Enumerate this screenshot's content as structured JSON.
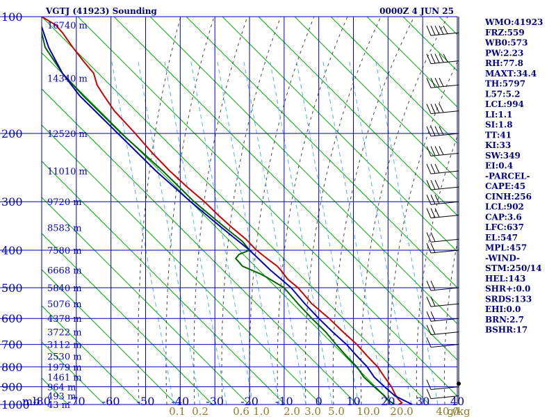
{
  "chart_data": {
    "type": "line",
    "title": "VGTJ (41923) Sounding",
    "time_label": "0000Z  4 JUN 25",
    "y_axis_unit": "mb",
    "y_scale": "log",
    "ylim": [
      1000,
      100
    ],
    "xlim": [
      -80,
      40
    ],
    "pressure_ticks": [
      100,
      200,
      300,
      400,
      500,
      600,
      700,
      800,
      900,
      1000
    ],
    "temperature_ticks": [
      "-80",
      "-70",
      "-60",
      "-50",
      "-40",
      "-30",
      "-20",
      "-10",
      "0",
      "10",
      "20",
      "30",
      "40"
    ],
    "height_labels": [
      {
        "p": 105,
        "label": "16740 m"
      },
      {
        "p": 144,
        "label": "14340 m"
      },
      {
        "p": 200,
        "label": "12520 m"
      },
      {
        "p": 250,
        "label": "11010 m"
      },
      {
        "p": 300,
        "label": "9720 m"
      },
      {
        "p": 350,
        "label": "8583 m"
      },
      {
        "p": 400,
        "label": "7580 m"
      },
      {
        "p": 450,
        "label": "6668 m"
      },
      {
        "p": 500,
        "label": "5840 m"
      },
      {
        "p": 550,
        "label": "5076 m"
      },
      {
        "p": 600,
        "label": "4378 m"
      },
      {
        "p": 650,
        "label": "3722 m"
      },
      {
        "p": 700,
        "label": "3112 m"
      },
      {
        "p": 750,
        "label": "2530 m"
      },
      {
        "p": 800,
        "label": "1979 m"
      },
      {
        "p": 850,
        "label": "1461 m"
      },
      {
        "p": 900,
        "label": "964 m"
      },
      {
        "p": 950,
        "label": "493 m"
      },
      {
        "p": 1000,
        "label": "43 m"
      }
    ],
    "mixing_ratio_labels": [
      "0.1",
      "0.2",
      "0.6",
      "1.0",
      "2.0",
      "3.0",
      "5.0",
      "10.0",
      "20.0",
      "40.0",
      "g/kg"
    ],
    "series": [
      {
        "name": "",
        "color": "#c80000",
        "points": [
          [
            100,
            -80
          ],
          [
            105,
            -76
          ],
          [
            110,
            -74
          ],
          [
            120,
            -71
          ],
          [
            130,
            -68
          ],
          [
            140,
            -65
          ],
          [
            150,
            -64
          ],
          [
            160,
            -62
          ],
          [
            175,
            -59
          ],
          [
            200,
            -53
          ],
          [
            225,
            -48
          ],
          [
            250,
            -43
          ],
          [
            275,
            -38
          ],
          [
            300,
            -33
          ],
          [
            325,
            -29
          ],
          [
            350,
            -25
          ],
          [
            375,
            -21
          ],
          [
            400,
            -18
          ],
          [
            420,
            -15
          ],
          [
            440,
            -12
          ],
          [
            450,
            -11
          ],
          [
            475,
            -9
          ],
          [
            500,
            -6
          ],
          [
            550,
            -2
          ],
          [
            600,
            3
          ],
          [
            650,
            7
          ],
          [
            700,
            11
          ],
          [
            750,
            14
          ],
          [
            800,
            17
          ],
          [
            850,
            19
          ],
          [
            900,
            21
          ],
          [
            940,
            22
          ],
          [
            970,
            23
          ],
          [
            990,
            24
          ],
          [
            1000,
            23
          ]
        ]
      },
      {
        "name": "",
        "color": "#006400",
        "points": [
          [
            100,
            -81
          ],
          [
            110,
            -80
          ],
          [
            120,
            -79
          ],
          [
            140,
            -74
          ],
          [
            160,
            -68
          ],
          [
            200,
            -57
          ],
          [
            250,
            -45
          ],
          [
            300,
            -36
          ],
          [
            350,
            -27
          ],
          [
            380,
            -22
          ],
          [
            400,
            -20
          ],
          [
            410,
            -23
          ],
          [
            420,
            -24
          ],
          [
            440,
            -22
          ],
          [
            460,
            -17
          ],
          [
            470,
            -15
          ],
          [
            500,
            -10
          ],
          [
            550,
            -6
          ],
          [
            600,
            -2
          ],
          [
            650,
            2
          ],
          [
            700,
            5
          ],
          [
            750,
            8
          ],
          [
            800,
            11
          ],
          [
            850,
            13
          ],
          [
            900,
            16
          ],
          [
            950,
            19
          ],
          [
            975,
            20
          ],
          [
            1000,
            22
          ]
        ]
      },
      {
        "name": "",
        "color": "#0000b4",
        "points": [
          [
            100,
            -81
          ],
          [
            120,
            -78
          ],
          [
            140,
            -74
          ],
          [
            160,
            -69
          ],
          [
            200,
            -58
          ],
          [
            250,
            -47
          ],
          [
            300,
            -37
          ],
          [
            350,
            -28
          ],
          [
            400,
            -20
          ],
          [
            450,
            -14
          ],
          [
            500,
            -8
          ],
          [
            550,
            -4
          ],
          [
            600,
            0
          ],
          [
            650,
            4
          ],
          [
            700,
            8
          ],
          [
            750,
            11
          ],
          [
            800,
            14
          ],
          [
            850,
            16
          ],
          [
            900,
            19
          ],
          [
            950,
            22
          ],
          [
            1000,
            27
          ]
        ]
      }
    ],
    "wind_barbs": [
      {
        "p": 110,
        "speed": 50
      },
      {
        "p": 130,
        "speed": 45
      },
      {
        "p": 150,
        "speed": 40
      },
      {
        "p": 175,
        "speed": 35
      },
      {
        "p": 200,
        "speed": 35
      },
      {
        "p": 225,
        "speed": 35
      },
      {
        "p": 250,
        "speed": 30
      },
      {
        "p": 275,
        "speed": 30
      },
      {
        "p": 300,
        "speed": 30
      },
      {
        "p": 325,
        "speed": 25
      },
      {
        "p": 375,
        "speed": 20
      },
      {
        "p": 400,
        "speed": 15
      },
      {
        "p": 500,
        "speed": 20
      },
      {
        "p": 550,
        "speed": 20
      },
      {
        "p": 600,
        "speed": 15
      },
      {
        "p": 650,
        "speed": 15
      },
      {
        "p": 700,
        "speed": 10
      },
      {
        "p": 900,
        "speed": 5
      },
      {
        "p": 950,
        "speed": 5
      }
    ]
  },
  "indices": [
    "WMO:41923",
    "FRZ:559",
    "WB0:573",
    "PW:2.23",
    "RH:77.8",
    "MAXT:34.4",
    "TH:5797",
    "L57:5.2",
    "LCL:994",
    "LI:1.1",
    "SI:1.8",
    "TT:41",
    "KI:33",
    "SW:349",
    "EI:0.4",
    "-PARCEL-",
    "CAPE:45",
    "CINH:256",
    "LCL:902",
    "CAP:3.6",
    "LFC:637",
    "EL:547",
    "MPL:457",
    "-WIND-",
    "STM:250/14",
    "HEL:143",
    "SHR+:0.0",
    "SRDS:133",
    "EHI:0.0",
    "BRN:2.7",
    "BSHR:17"
  ],
  "colors": {
    "frame": "#0000b4",
    "dry_adiabat": "#00aa00",
    "moist_adiabat": "#444444",
    "mixing_ratio": "#55aaff"
  }
}
